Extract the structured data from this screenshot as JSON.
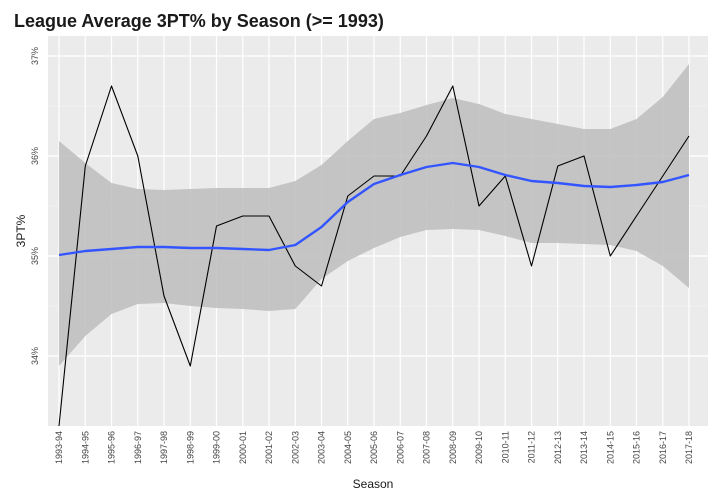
{
  "chart_data": {
    "type": "line",
    "title": "League Average 3PT% by Season (>= 1993)",
    "xlabel": "Season",
    "ylabel": "3PT%",
    "categories": [
      "1993-94",
      "1994-95",
      "1995-96",
      "1996-97",
      "1997-98",
      "1998-99",
      "1999-00",
      "2000-01",
      "2001-02",
      "2002-03",
      "2003-04",
      "2004-05",
      "2005-06",
      "2006-07",
      "2007-08",
      "2008-09",
      "2009-10",
      "2010-11",
      "2011-12",
      "2012-13",
      "2013-14",
      "2014-15",
      "2015-16",
      "2016-17",
      "2017-18"
    ],
    "yticks": [
      34,
      35,
      36,
      37
    ],
    "ytick_labels": [
      "34%",
      "35%",
      "36%",
      "37%"
    ],
    "ylim": [
      33.3,
      37.2
    ],
    "grid": true,
    "series": [
      {
        "role": "observed",
        "color": "#000000",
        "values": [
          33.3,
          35.9,
          36.7,
          36.0,
          34.6,
          33.9,
          35.3,
          35.4,
          35.4,
          34.9,
          34.7,
          35.6,
          35.8,
          35.8,
          36.2,
          36.7,
          35.5,
          35.8,
          34.9,
          35.9,
          36.0,
          35.0,
          35.4,
          35.8,
          36.2
        ]
      },
      {
        "role": "smooth",
        "color": "#3355ff",
        "values": [
          35.01,
          35.05,
          35.07,
          35.09,
          35.09,
          35.08,
          35.08,
          35.07,
          35.06,
          35.11,
          35.29,
          35.54,
          35.72,
          35.81,
          35.89,
          35.93,
          35.89,
          35.81,
          35.75,
          35.73,
          35.7,
          35.69,
          35.71,
          35.74,
          35.81
        ]
      }
    ],
    "band": {
      "color": "#bdbdbd",
      "lower": [
        33.9,
        34.2,
        34.42,
        34.52,
        34.53,
        34.5,
        34.48,
        34.47,
        34.45,
        34.47,
        34.77,
        34.95,
        35.08,
        35.19,
        35.26,
        35.27,
        35.26,
        35.2,
        35.13,
        35.13,
        35.12,
        35.11,
        35.05,
        34.9,
        34.68
      ],
      "upper": [
        36.15,
        35.93,
        35.73,
        35.67,
        35.66,
        35.67,
        35.68,
        35.68,
        35.68,
        35.75,
        35.91,
        36.15,
        36.37,
        36.43,
        36.51,
        36.58,
        36.52,
        36.42,
        36.37,
        36.32,
        36.27,
        36.27,
        36.37,
        36.59,
        36.92
      ]
    }
  }
}
